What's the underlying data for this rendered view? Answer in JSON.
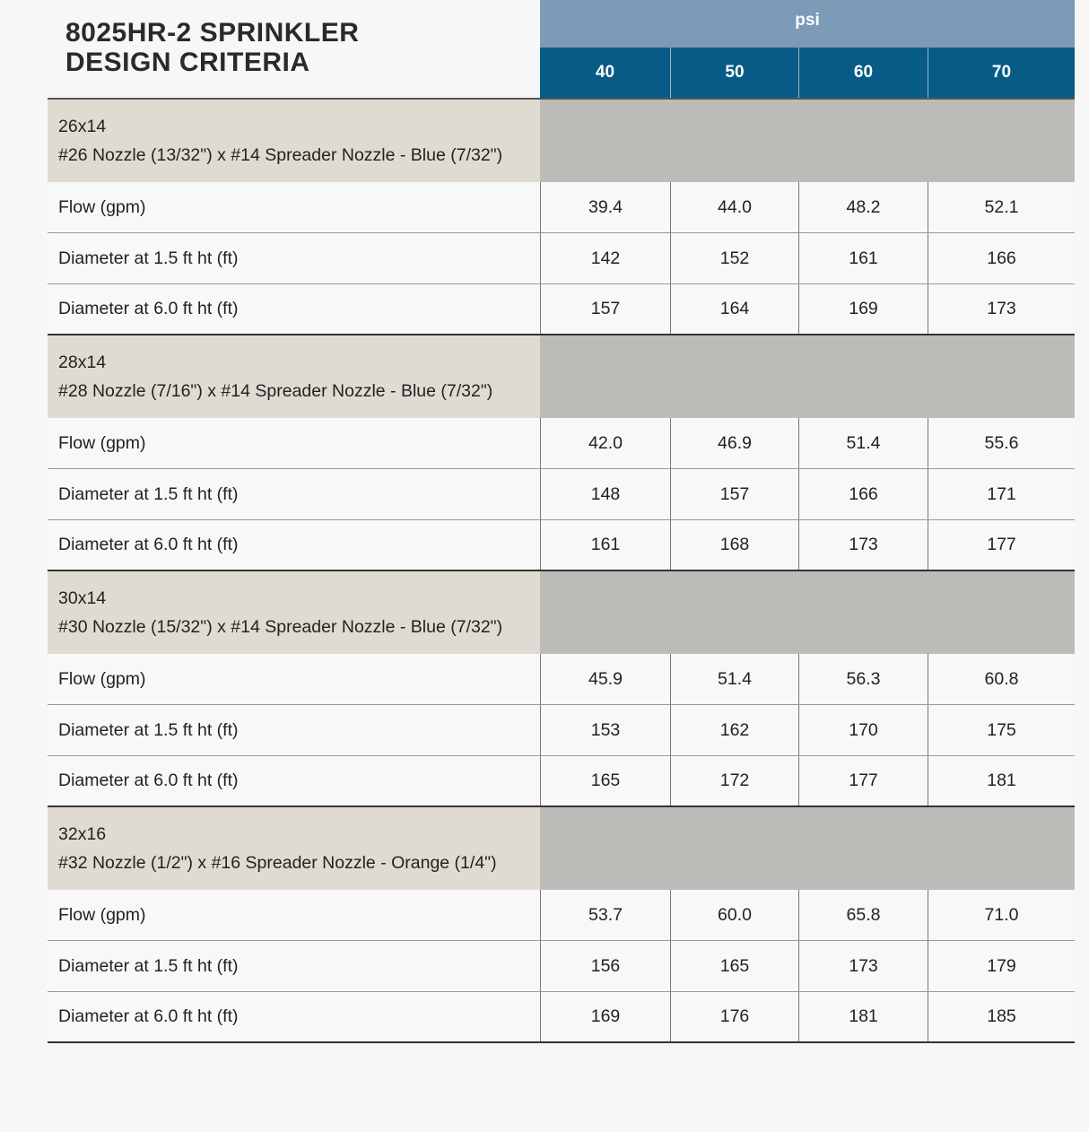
{
  "title": {
    "line1": "8025HR-2 SPRINKLER",
    "line2": "DESIGN CRITERIA"
  },
  "header": {
    "unit": "psi",
    "pressures": [
      "40",
      "50",
      "60",
      "70"
    ]
  },
  "colors": {
    "unit_header": "#7b9bb6",
    "pressure_header": "#075b86",
    "group_label_bg": "#e0dbd2",
    "group_fill_bg": "#bcbbb8"
  },
  "groups": [
    {
      "code": "26x14",
      "description": "#26 Nozzle (13/32\") x #14 Spreader Nozzle - Blue (7/32\")",
      "rows": [
        {
          "label": "Flow (gpm)",
          "values": [
            "39.4",
            "44.0",
            "48.2",
            "52.1"
          ]
        },
        {
          "label": "Diameter at 1.5 ft ht (ft)",
          "values": [
            "142",
            "152",
            "161",
            "166"
          ]
        },
        {
          "label": "Diameter at 6.0 ft ht (ft)",
          "values": [
            "157",
            "164",
            "169",
            "173"
          ]
        }
      ]
    },
    {
      "code": "28x14",
      "description": "#28 Nozzle (7/16\") x #14 Spreader Nozzle - Blue (7/32\")",
      "rows": [
        {
          "label": "Flow (gpm)",
          "values": [
            "42.0",
            "46.9",
            "51.4",
            "55.6"
          ]
        },
        {
          "label": "Diameter at 1.5 ft ht (ft)",
          "values": [
            "148",
            "157",
            "166",
            "171"
          ]
        },
        {
          "label": "Diameter at 6.0 ft ht (ft)",
          "values": [
            "161",
            "168",
            "173",
            "177"
          ]
        }
      ]
    },
    {
      "code": "30x14",
      "description": "#30 Nozzle (15/32\") x #14 Spreader Nozzle - Blue (7/32\")",
      "rows": [
        {
          "label": "Flow (gpm)",
          "values": [
            "45.9",
            "51.4",
            "56.3",
            "60.8"
          ]
        },
        {
          "label": "Diameter at 1.5 ft ht (ft)",
          "values": [
            "153",
            "162",
            "170",
            "175"
          ]
        },
        {
          "label": "Diameter at 6.0 ft ht (ft)",
          "values": [
            "165",
            "172",
            "177",
            "181"
          ]
        }
      ]
    },
    {
      "code": "32x16",
      "description": "#32 Nozzle (1/2\") x #16 Spreader Nozzle - Orange (1/4\")",
      "rows": [
        {
          "label": "Flow (gpm)",
          "values": [
            "53.7",
            "60.0",
            "65.8",
            "71.0"
          ]
        },
        {
          "label": "Diameter at 1.5 ft ht (ft)",
          "values": [
            "156",
            "165",
            "173",
            "179"
          ]
        },
        {
          "label": "Diameter at 6.0 ft ht (ft)",
          "values": [
            "169",
            "176",
            "181",
            "185"
          ]
        }
      ]
    }
  ]
}
